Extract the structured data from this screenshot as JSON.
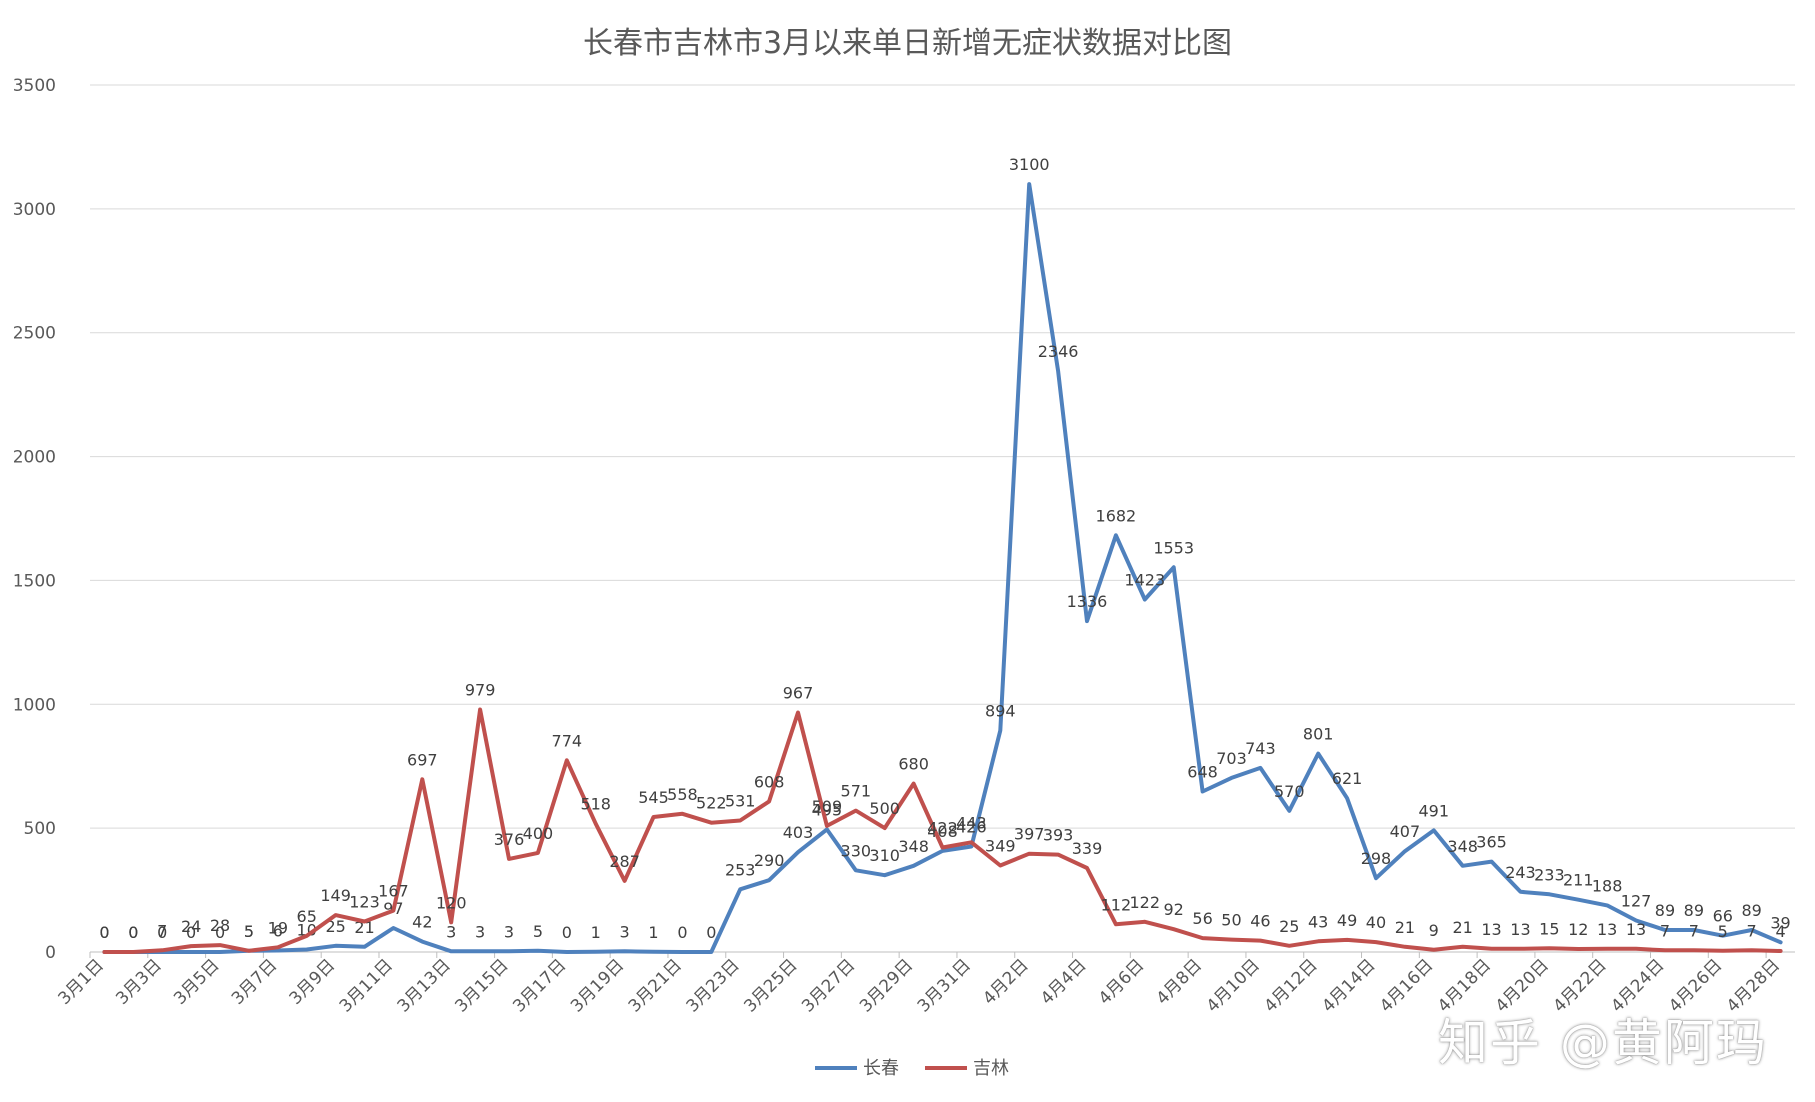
{
  "chart_data": {
    "type": "line",
    "title": "长春市吉林市3月以来单日新增无症状数据对比图",
    "xlabel": "",
    "ylabel": "",
    "ylim": [
      0,
      3500
    ],
    "yticks": [
      0,
      500,
      1000,
      1500,
      2000,
      2500,
      3000,
      3500
    ],
    "grid": true,
    "legend_position": "bottom",
    "categories": [
      "3月1日",
      "3月2日",
      "3月3日",
      "3月4日",
      "3月5日",
      "3月6日",
      "3月7日",
      "3月8日",
      "3月9日",
      "3月10日",
      "3月11日",
      "3月12日",
      "3月13日",
      "3月14日",
      "3月15日",
      "3月16日",
      "3月17日",
      "3月18日",
      "3月19日",
      "3月20日",
      "3月21日",
      "3月22日",
      "3月23日",
      "3月24日",
      "3月25日",
      "3月26日",
      "3月27日",
      "3月28日",
      "3月29日",
      "3月30日",
      "3月31日",
      "4月1日",
      "4月2日",
      "4月3日",
      "4月4日",
      "4月5日",
      "4月6日",
      "4月7日",
      "4月8日",
      "4月9日",
      "4月10日",
      "4月11日",
      "4月12日",
      "4月13日",
      "4月14日",
      "4月15日",
      "4月16日",
      "4月17日",
      "4月18日",
      "4月19日",
      "4月20日",
      "4月21日",
      "4月22日",
      "4月23日",
      "4月24日",
      "4月25日",
      "4月26日",
      "4月27日",
      "4月28日"
    ],
    "tick_labels": [
      "3月1日",
      "3月3日",
      "3月5日",
      "3月7日",
      "3月9日",
      "3月11日",
      "3月13日",
      "3月15日",
      "3月17日",
      "3月19日",
      "3月21日",
      "3月23日",
      "3月25日",
      "3月27日",
      "3月29日",
      "3月31日",
      "4月2日",
      "4月4日",
      "4月6日",
      "4月8日",
      "4月10日",
      "4月12日",
      "4月14日",
      "4月16日",
      "4月18日",
      "4月20日",
      "4月22日",
      "4月24日",
      "4月26日",
      "4月28日"
    ],
    "series": [
      {
        "name": "长春",
        "color": "#4f81bd",
        "values": [
          0,
          0,
          0,
          0,
          0,
          5,
          6,
          10,
          25,
          21,
          97,
          42,
          3,
          3,
          3,
          5,
          0,
          1,
          3,
          1,
          0,
          0,
          253,
          290,
          403,
          495,
          330,
          310,
          348,
          408,
          426,
          894,
          3100,
          2346,
          1336,
          1682,
          1423,
          1553,
          648,
          703,
          743,
          570,
          801,
          621,
          298,
          407,
          491,
          348,
          365,
          243,
          233,
          211,
          188,
          127,
          89,
          89,
          66,
          89,
          39
        ]
      },
      {
        "name": "吉林",
        "color": "#c0504d",
        "values": [
          0,
          0,
          7,
          24,
          28,
          5,
          19,
          65,
          149,
          123,
          167,
          697,
          120,
          979,
          376,
          400,
          774,
          518,
          287,
          545,
          558,
          522,
          531,
          608,
          967,
          509,
          571,
          500,
          680,
          422,
          443,
          349,
          397,
          393,
          339,
          112,
          122,
          92,
          56,
          50,
          46,
          25,
          43,
          49,
          40,
          21,
          9,
          21,
          13,
          13,
          15,
          12,
          13,
          13,
          7,
          7,
          5,
          7,
          4
        ]
      }
    ]
  },
  "watermark": "知乎 @黄阿玛"
}
